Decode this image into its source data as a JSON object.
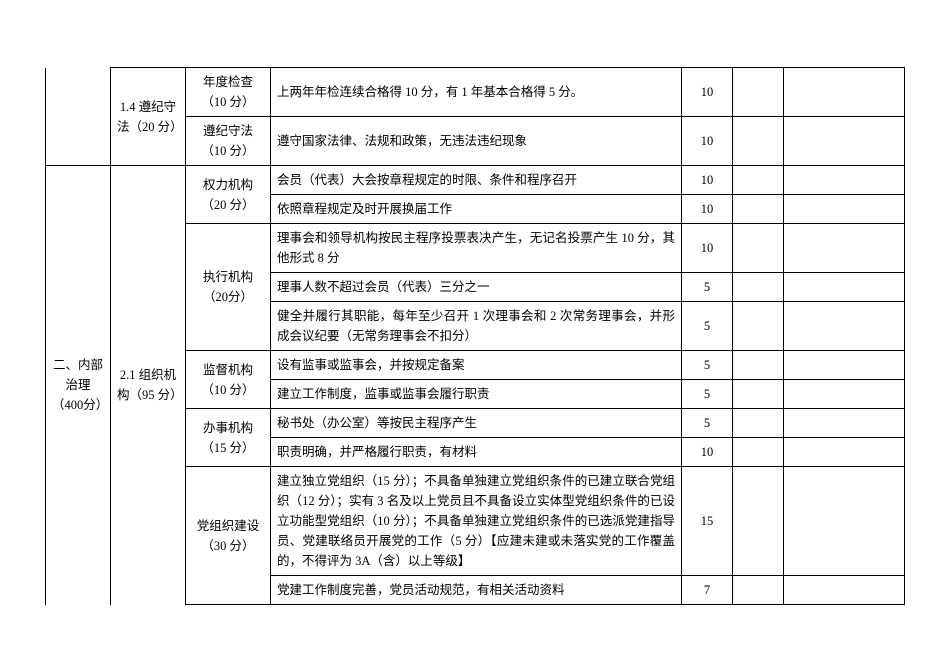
{
  "table": {
    "border_color": "#000000",
    "background_color": "#ffffff",
    "font_family": "SimSun",
    "font_size": 12.5,
    "rows": [
      {
        "section": "",
        "subsection": "1.4 遵纪守法（20 分）",
        "indicator": "年度检查（10 分）",
        "criteria": "上两年年检连续合格得 10 分，有 1 年基本合格得 5 分。",
        "score": "10"
      },
      {
        "indicator": "遵纪守法（10 分）",
        "criteria": "遵守国家法律、法规和政策，无违法违纪现象",
        "score": "10"
      },
      {
        "section": "二、内部治理（400分）",
        "subsection": "2.1 组织机构（95 分）",
        "indicator": "权力机构（20 分）",
        "criteria": "会员（代表）大会按章程规定的时限、条件和程序召开",
        "score": "10"
      },
      {
        "criteria": "依照章程规定及时开展换届工作",
        "score": "10"
      },
      {
        "indicator": "执行机构（20分）",
        "criteria": "理事会和领导机构按民主程序投票表决产生，无记名投票产生 10 分，其他形式 8 分",
        "score": "10"
      },
      {
        "criteria": "理事人数不超过会员（代表）三分之一",
        "score": "5"
      },
      {
        "criteria": "健全并履行其职能，每年至少召开 1 次理事会和 2 次常务理事会，并形成会议纪要（无常务理事会不扣分）",
        "score": "5"
      },
      {
        "indicator": "监督机构（10 分）",
        "criteria": "设有监事或监事会，并按规定备案",
        "score": "5"
      },
      {
        "criteria": "建立工作制度，监事或监事会履行职责",
        "score": "5"
      },
      {
        "indicator": "办事机构（15 分）",
        "criteria": "秘书处（办公室）等按民主程序产生",
        "score": "5"
      },
      {
        "criteria": "职责明确，并严格履行职责，有材料",
        "score": "10"
      },
      {
        "indicator": "党组织建设（30 分）",
        "criteria": "建立独立党组织（15 分）；不具备单独建立党组织条件的已建立联合党组织（12 分）；实有 3 名及以上党员且不具备设立实体型党组织条件的已设立功能型党组织（10 分）；不具备单独建立党组织条件的已选派党建指导员、党建联络员开展党的工作（5 分）【应建未建或未落实党的工作覆盖的，不得评为 3A（含）以上等级】",
        "score": "15"
      },
      {
        "criteria": "党建工作制度完善，党员活动规范，有相关活动资料",
        "score": "7"
      }
    ]
  }
}
